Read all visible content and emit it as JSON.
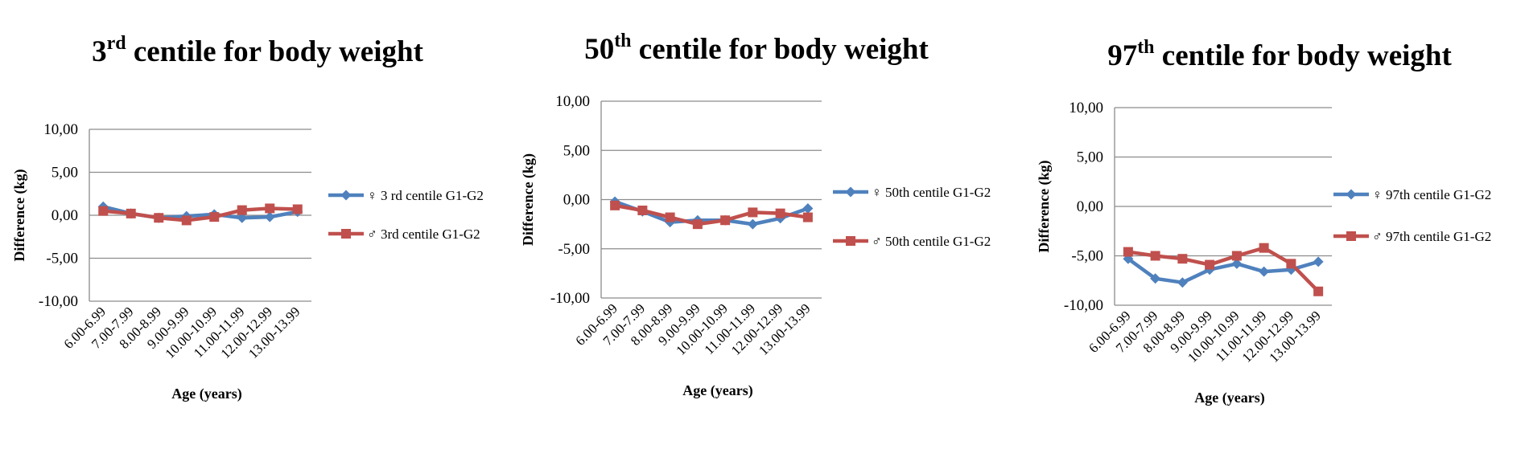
{
  "charts": [
    {
      "title_main": "3",
      "title_sup": "rd",
      "title_rest": " centile for body weight",
      "chart_data": {
        "type": "line",
        "categories": [
          "6.00-6.99",
          "7.00-7.99",
          "8.00-8.99",
          "9.00-9.99",
          "10.00-10.99",
          "11.00-11.99",
          "12.00-12.99",
          "13.00-13.99"
        ],
        "yticks": [
          "-10,00",
          "-5,00",
          "0,00",
          "5,00",
          "10,00"
        ],
        "ylim": [
          -10,
          10
        ],
        "xlabel": "Age (years)",
        "ylabel": "Difference (kg)",
        "grid": true,
        "legend_position": "right",
        "series": [
          {
            "name": "♀ 3 rd centile  G1-G2",
            "marker": "diamond",
            "color": "#4F81BD",
            "values": [
              1.0,
              0.2,
              -0.3,
              -0.1,
              0.1,
              -0.3,
              -0.2,
              0.4
            ]
          },
          {
            "name": "♂ 3rd centile  G1-G2",
            "marker": "square",
            "color": "#C0504D",
            "values": [
              0.5,
              0.2,
              -0.3,
              -0.6,
              -0.2,
              0.6,
              0.8,
              0.7
            ]
          }
        ]
      }
    },
    {
      "title_main": "50",
      "title_sup": "th",
      "title_rest": " centile for body weight",
      "chart_data": {
        "type": "line",
        "categories": [
          "6.00-6.99",
          "7.00-7.99",
          "8.00-8.99",
          "9.00-9.99",
          "10.00-10.99",
          "11.00-11.99",
          "12.00-12.99",
          "13.00-13.99"
        ],
        "yticks": [
          "-10,00",
          "-5,00",
          "0,00",
          "5,00",
          "10,00"
        ],
        "ylim": [
          -10,
          10
        ],
        "xlabel": "Age (years)",
        "ylabel": "Difference (kg)",
        "grid": true,
        "legend_position": "right",
        "series": [
          {
            "name": "♀ 50th  centile  G1-G2",
            "marker": "diamond",
            "color": "#4F81BD",
            "values": [
              -0.2,
              -1.2,
              -2.3,
              -2.1,
              -2.1,
              -2.5,
              -1.9,
              -0.9
            ]
          },
          {
            "name": "♂  50th  centile  G1-G2",
            "marker": "square",
            "color": "#C0504D",
            "values": [
              -0.6,
              -1.1,
              -1.8,
              -2.5,
              -2.1,
              -1.3,
              -1.4,
              -1.8
            ]
          }
        ]
      }
    },
    {
      "title_main": "97",
      "title_sup": "th",
      "title_rest": " centile for body weight",
      "chart_data": {
        "type": "line",
        "categories": [
          "6.00-6.99",
          "7.00-7.99",
          "8.00-8.99",
          "9.00-9.99",
          "10.00-10.99",
          "11.00-11.99",
          "12.00-12.99",
          "13.00-13.99"
        ],
        "yticks": [
          "-10,00",
          "-5,00",
          "0,00",
          "5,00",
          "10,00"
        ],
        "ylim": [
          -10,
          10
        ],
        "xlabel": "Age (years)",
        "ylabel": "Difference (kg)",
        "grid": true,
        "legend_position": "right",
        "series": [
          {
            "name": "♀ 97th  centile  G1-G2",
            "marker": "diamond",
            "color": "#4F81BD",
            "values": [
              -5.3,
              -7.3,
              -7.7,
              -6.4,
              -5.8,
              -6.6,
              -6.4,
              -5.6
            ]
          },
          {
            "name": "♂ 97th  centile   G1-G2",
            "marker": "square",
            "color": "#C0504D",
            "values": [
              -4.6,
              -5.0,
              -5.3,
              -5.9,
              -5.0,
              -4.2,
              -5.8,
              -8.6
            ]
          }
        ]
      }
    }
  ]
}
